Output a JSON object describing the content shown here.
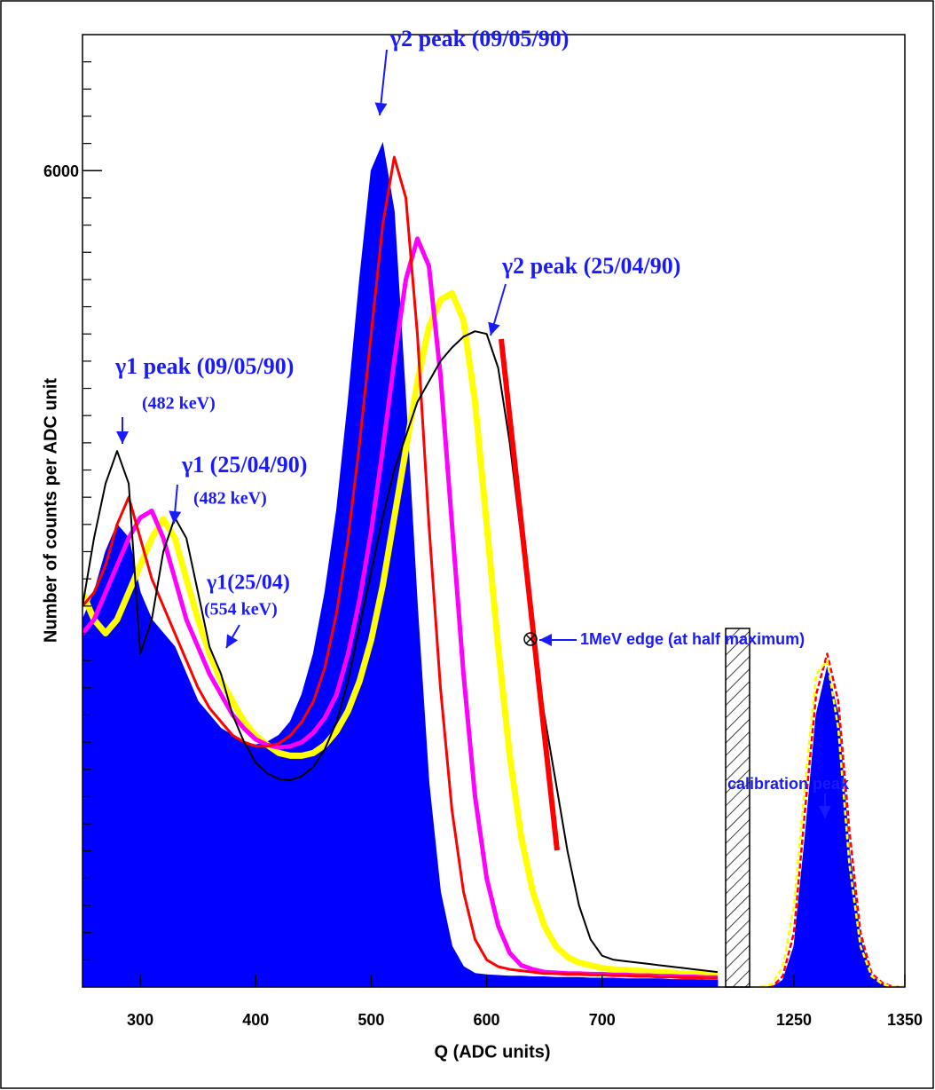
{
  "chart_data": [
    {
      "type": "line",
      "xlabel": "Q (ADC units)",
      "ylabel": "Number of counts per ADC unit",
      "xlim": [
        250,
        807
      ],
      "xticks": [
        300,
        400,
        500,
        600,
        700
      ],
      "ylim": [
        0,
        7000
      ],
      "yticks": [
        6000
      ],
      "yminorticks": [
        200,
        400,
        600,
        800,
        1000,
        1200,
        1400,
        1600,
        1800,
        2000,
        2200,
        2400,
        2600,
        2800,
        3000,
        3200,
        3400,
        3600,
        3800,
        4000,
        4200,
        4400,
        4600,
        4800,
        5000,
        5200,
        5400,
        5600,
        5800,
        6200,
        6400,
        6600,
        6800
      ],
      "x": [
        250,
        260,
        270,
        280,
        290,
        300,
        310,
        320,
        330,
        340,
        350,
        360,
        370,
        380,
        390,
        400,
        410,
        420,
        430,
        440,
        450,
        460,
        470,
        480,
        490,
        500,
        510,
        520,
        530,
        540,
        550,
        560,
        570,
        580,
        590,
        600,
        610,
        620,
        630,
        640,
        650,
        660,
        670,
        680,
        690,
        700,
        710,
        720,
        730,
        740,
        750,
        760,
        770,
        780,
        790,
        800
      ],
      "series": [
        {
          "color": "#0000ff",
          "filled": true,
          "values": [
            2700,
            2900,
            3200,
            3400,
            3300,
            2900,
            2700,
            2600,
            2500,
            2300,
            2100,
            2000,
            1900,
            1850,
            1800,
            1780,
            1800,
            1850,
            1950,
            2150,
            2450,
            2900,
            3500,
            4300,
            5200,
            6000,
            6200,
            5700,
            4300,
            2800,
            1500,
            700,
            300,
            150,
            100,
            90,
            85,
            80,
            80,
            75,
            75,
            70,
            70,
            70,
            65,
            65,
            65,
            60,
            60,
            60,
            60,
            55,
            55,
            55,
            50,
            50
          ]
        },
        {
          "color": "#ffff00",
          "values": [
            2900,
            2700,
            2600,
            2700,
            2900,
            3100,
            3300,
            3440,
            3300,
            3000,
            2700,
            2450,
            2250,
            2100,
            1950,
            1850,
            1780,
            1720,
            1700,
            1700,
            1720,
            1780,
            1880,
            2030,
            2250,
            2550,
            2950,
            3450,
            3950,
            4450,
            4850,
            5050,
            5100,
            4900,
            4300,
            3400,
            2500,
            1700,
            1100,
            700,
            450,
            300,
            220,
            180,
            160,
            140,
            130,
            125,
            120,
            115,
            110,
            105,
            100,
            95,
            95,
            90
          ]
        },
        {
          "color": "#ff00ff",
          "values": [
            2600,
            2700,
            2900,
            3100,
            3300,
            3450,
            3500,
            3300,
            3000,
            2700,
            2500,
            2300,
            2150,
            2000,
            1900,
            1820,
            1780,
            1760,
            1770,
            1800,
            1870,
            1980,
            2150,
            2450,
            2850,
            3350,
            3950,
            4600,
            5200,
            5500,
            5300,
            4500,
            3400,
            2300,
            1400,
            800,
            450,
            250,
            160,
            130,
            110,
            105,
            100,
            100,
            95,
            95,
            90,
            90,
            85,
            85,
            80,
            80,
            75,
            75,
            70,
            70
          ]
        },
        {
          "color": "#ff0000",
          "values": [
            2800,
            2900,
            3100,
            3400,
            3600,
            3300,
            3000,
            2800,
            2600,
            2400,
            2200,
            2050,
            1950,
            1850,
            1800,
            1770,
            1770,
            1790,
            1850,
            1950,
            2100,
            2350,
            2750,
            3300,
            4000,
            4800,
            5600,
            6100,
            5800,
            4800,
            3400,
            2200,
            1300,
            700,
            350,
            200,
            150,
            130,
            120,
            110,
            100,
            100,
            95,
            95,
            90,
            90,
            85,
            85,
            80,
            80,
            75,
            75,
            70,
            70,
            65,
            65
          ]
        },
        {
          "color": "#000000",
          "values": [
            2800,
            3300,
            3700,
            3940,
            3700,
            2450,
            2700,
            3200,
            3450,
            3300,
            2900,
            2500,
            2300,
            2000,
            1800,
            1650,
            1570,
            1530,
            1520,
            1550,
            1620,
            1750,
            1950,
            2250,
            2650,
            3050,
            3450,
            3800,
            4050,
            4300,
            4450,
            4600,
            4700,
            4780,
            4820,
            4800,
            4550,
            4000,
            3300,
            2600,
            2000,
            1500,
            1000,
            600,
            350,
            230,
            200,
            190,
            180,
            170,
            160,
            150,
            140,
            130,
            120,
            110
          ]
        }
      ],
      "annotations": [
        "γ2 peak (09/05/90)",
        "γ2 peak (25/04/90)",
        "γ1 peak (09/05/90)",
        "(482 keV)",
        "γ1 (25/04/90)",
        "(482 keV)",
        "γ1(25/04)",
        "(554 keV)",
        "1MeV edge (at half maximum)",
        "calibration peak"
      ]
    },
    {
      "type": "line",
      "xlim": [
        1210,
        1350
      ],
      "xticks": [
        1250,
        1350
      ],
      "ylim": [
        0,
        7000
      ],
      "x": [
        1220,
        1230,
        1240,
        1250,
        1260,
        1270,
        1280,
        1290,
        1300,
        1310,
        1320,
        1330,
        1340,
        1350
      ],
      "series": [
        {
          "color": "#0000ff",
          "filled": true,
          "values": [
            0,
            0,
            50,
            300,
            1100,
            2000,
            2350,
            2000,
            1000,
            350,
            80,
            20,
            0,
            0
          ]
        },
        {
          "color": "#ff0000",
          "values": [
            0,
            0,
            80,
            400,
            1300,
            2150,
            2450,
            2100,
            1150,
            400,
            100,
            30,
            0,
            0
          ]
        },
        {
          "color": "#ffff00",
          "values": [
            0,
            20,
            150,
            600,
            1500,
            2300,
            2400,
            1900,
            900,
            300,
            80,
            20,
            0,
            0
          ]
        }
      ]
    }
  ]
}
